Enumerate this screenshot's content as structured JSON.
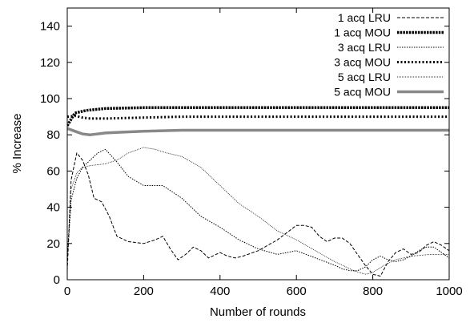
{
  "chart_data": {
    "type": "line",
    "xlabel": "Number of rounds",
    "ylabel": "% Increase",
    "xlim": [
      0,
      1000
    ],
    "ylim": [
      0,
      150
    ],
    "xticks": [
      0,
      200,
      400,
      600,
      800,
      1000
    ],
    "yticks": [
      0,
      20,
      40,
      60,
      80,
      100,
      120,
      140
    ],
    "grid": false,
    "legend_position": "top-right",
    "series": [
      {
        "name": "1 acq LRU",
        "style": "thin-dash",
        "color": "#000000",
        "x": [
          0,
          10,
          25,
          40,
          55,
          70,
          90,
          110,
          130,
          160,
          200,
          230,
          250,
          270,
          290,
          310,
          330,
          350,
          370,
          400,
          420,
          440,
          460,
          500,
          550,
          600,
          620,
          640,
          660,
          680,
          700,
          720,
          740,
          760,
          780,
          800,
          820,
          840,
          860,
          880,
          900,
          920,
          940,
          960,
          980,
          1000
        ],
        "y": [
          5,
          55,
          70,
          66,
          58,
          45,
          43,
          35,
          24,
          21,
          20,
          22,
          24,
          17,
          11,
          14,
          18,
          16,
          12,
          15,
          13,
          12,
          13,
          16,
          22,
          30,
          30,
          29,
          24,
          21,
          23,
          23,
          20,
          14,
          8,
          3,
          2,
          10,
          15,
          17,
          14,
          15,
          19,
          21,
          19,
          16
        ]
      },
      {
        "name": "1 acq MOU",
        "style": "thick-dense-dot",
        "color": "#000000",
        "x": [
          0,
          20,
          50,
          100,
          200,
          300,
          400,
          500,
          600,
          700,
          800,
          900,
          1000
        ],
        "y": [
          85,
          92,
          93.5,
          94.5,
          95,
          95,
          95,
          95,
          95,
          95,
          95,
          95,
          95
        ]
      },
      {
        "name": "3 acq LRU",
        "style": "small-dot",
        "color": "#000000",
        "x": [
          0,
          10,
          25,
          40,
          60,
          80,
          100,
          130,
          160,
          200,
          250,
          300,
          350,
          400,
          450,
          500,
          550,
          600,
          650,
          700,
          720,
          740,
          760,
          780,
          800,
          820,
          840,
          860,
          880,
          900,
          920,
          940,
          960,
          980,
          1000
        ],
        "y": [
          10,
          44,
          56,
          62,
          66,
          70,
          72,
          65,
          57,
          52,
          52,
          45,
          35,
          29,
          22,
          17,
          14,
          16,
          12,
          8,
          6,
          5,
          5,
          7,
          11,
          13,
          11,
          10,
          11,
          13,
          16,
          18,
          18,
          15,
          12
        ]
      },
      {
        "name": "3 acq MOU",
        "style": "thick-sparse-dot",
        "color": "#000000",
        "x": [
          0,
          20,
          40,
          60,
          100,
          200,
          300,
          400,
          500,
          600,
          700,
          800,
          900,
          1000
        ],
        "y": [
          90,
          90.5,
          89.5,
          89,
          89,
          89.5,
          90,
          90,
          90,
          90,
          90,
          90,
          90,
          90
        ]
      },
      {
        "name": "5 acq LRU",
        "style": "fine-dot",
        "color": "#000000",
        "x": [
          0,
          10,
          25,
          40,
          60,
          80,
          100,
          130,
          160,
          200,
          230,
          260,
          300,
          350,
          400,
          450,
          500,
          550,
          600,
          650,
          700,
          750,
          780,
          800,
          830,
          860,
          900,
          950,
          1000
        ],
        "y": [
          12,
          50,
          59,
          62,
          63,
          63.5,
          64,
          66,
          70,
          73,
          72,
          70,
          68,
          62,
          52,
          42,
          35,
          27,
          22,
          16,
          10,
          5,
          3,
          4,
          8,
          11,
          13,
          14,
          14
        ]
      },
      {
        "name": "5 acq MOU",
        "style": "thick-gray",
        "color": "#888888",
        "x": [
          0,
          20,
          40,
          60,
          100,
          150,
          200,
          300,
          400,
          500,
          600,
          700,
          800,
          900,
          1000
        ],
        "y": [
          83.5,
          82,
          80.5,
          80,
          81,
          81.5,
          82,
          82.5,
          82.5,
          82.5,
          82.5,
          82.5,
          82.5,
          82.5,
          82.5
        ]
      }
    ]
  }
}
